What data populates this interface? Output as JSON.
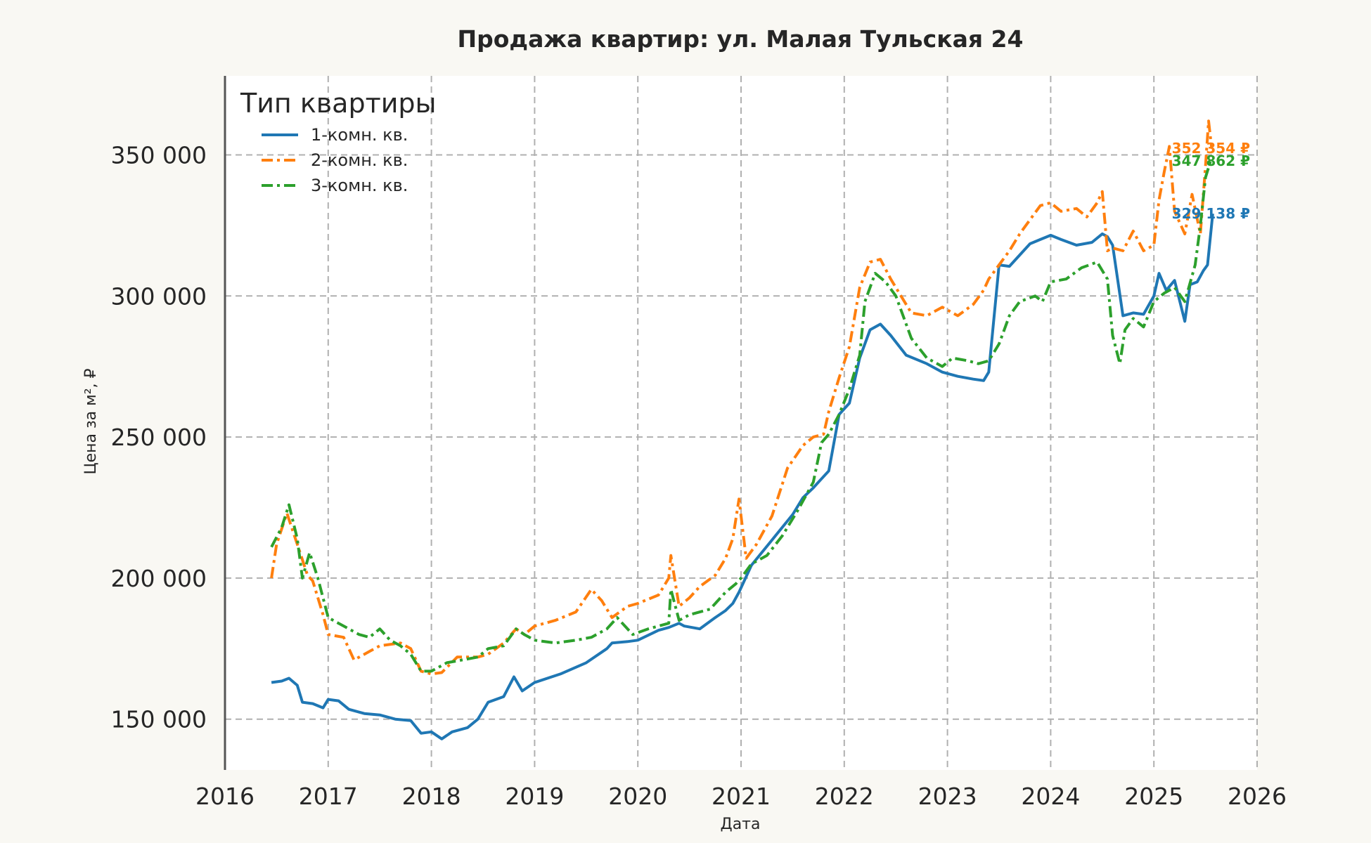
{
  "chart_data": {
    "type": "line",
    "title": "Продажа квартир: ул. Малая Тульская 24",
    "xlabel": "Дата",
    "ylabel": "Цена за м², ₽",
    "xlim": [
      2016,
      2026
    ],
    "ylim": [
      132000,
      378000
    ],
    "x_ticks": [
      "2016",
      "2017",
      "2018",
      "2019",
      "2020",
      "2021",
      "2022",
      "2023",
      "2024",
      "2025",
      "2026"
    ],
    "y_ticks": [
      150000,
      200000,
      250000,
      300000,
      350000
    ],
    "y_tick_labels": [
      "150 000",
      "200 000",
      "250 000",
      "300 000",
      "350 000"
    ],
    "grid": true,
    "legend_title": "Тип квартиры",
    "legend_position": "top-left",
    "series": [
      {
        "name": "1-комн. кв.",
        "color": "#1f77b4",
        "style": "solid",
        "end_label": "329 138 ₽",
        "x": [
          2016.45,
          2016.55,
          2016.62,
          2016.7,
          2016.75,
          2016.85,
          2016.95,
          2017.0,
          2017.1,
          2017.2,
          2017.35,
          2017.5,
          2017.65,
          2017.8,
          2017.9,
          2018.0,
          2018.1,
          2018.2,
          2018.35,
          2018.45,
          2018.55,
          2018.7,
          2018.8,
          2018.88,
          2019.0,
          2019.25,
          2019.5,
          2019.7,
          2019.75,
          2019.9,
          2020.0,
          2020.2,
          2020.3,
          2020.4,
          2020.45,
          2020.6,
          2020.75,
          2020.85,
          2020.92,
          2020.98,
          2021.1,
          2021.3,
          2021.5,
          2021.6,
          2021.7,
          2021.75,
          2021.85,
          2021.95,
          2022.05,
          2022.15,
          2022.25,
          2022.35,
          2022.45,
          2022.6,
          2022.8,
          2022.95,
          2023.1,
          2023.25,
          2023.35,
          2023.4,
          2023.5,
          2023.6,
          2023.7,
          2023.8,
          2023.9,
          2024.0,
          2024.1,
          2024.25,
          2024.4,
          2024.5,
          2024.55,
          2024.6,
          2024.7,
          2024.8,
          2024.9,
          2025.0,
          2025.05,
          2025.12,
          2025.2,
          2025.3,
          2025.35,
          2025.42,
          2025.48,
          2025.52,
          2025.57
        ],
        "y": [
          163000,
          163500,
          164500,
          162000,
          156000,
          155500,
          154000,
          157000,
          156500,
          153500,
          152000,
          151500,
          150000,
          149500,
          145000,
          145500,
          143000,
          145500,
          147000,
          150000,
          156000,
          158000,
          165000,
          160000,
          163000,
          166000,
          170000,
          175000,
          177000,
          177500,
          178000,
          181500,
          182500,
          184000,
          183000,
          182000,
          186000,
          188500,
          191000,
          195000,
          204500,
          213500,
          222500,
          228500,
          232000,
          234000,
          238000,
          258000,
          262000,
          278000,
          288000,
          290000,
          286000,
          279000,
          276000,
          273000,
          271500,
          270500,
          270000,
          273000,
          311000,
          310500,
          314500,
          318500,
          320000,
          321500,
          320000,
          318000,
          319000,
          322000,
          321000,
          318000,
          293000,
          294000,
          293500,
          300000,
          308000,
          302000,
          305500,
          291000,
          304000,
          305000,
          309000,
          311000,
          329138
        ]
      },
      {
        "name": "2-комн. кв.",
        "color": "#ff7f0e",
        "style": "dash-dot",
        "end_label": "352 354 ₽",
        "x": [
          2016.45,
          2016.5,
          2016.6,
          2016.7,
          2016.8,
          2016.85,
          2016.95,
          2017.0,
          2017.15,
          2017.25,
          2017.4,
          2017.5,
          2017.7,
          2017.8,
          2017.9,
          2018.0,
          2018.1,
          2018.25,
          2018.45,
          2018.55,
          2018.7,
          2018.82,
          2018.9,
          2019.0,
          2019.2,
          2019.4,
          2019.55,
          2019.65,
          2019.75,
          2019.9,
          2020.0,
          2020.2,
          2020.3,
          2020.32,
          2020.4,
          2020.5,
          2020.6,
          2020.75,
          2020.85,
          2020.92,
          2020.98,
          2021.05,
          2021.15,
          2021.3,
          2021.45,
          2021.6,
          2021.7,
          2021.8,
          2021.85,
          2021.95,
          2022.05,
          2022.15,
          2022.25,
          2022.35,
          2022.45,
          2022.55,
          2022.65,
          2022.8,
          2022.95,
          2023.1,
          2023.25,
          2023.35,
          2023.4,
          2023.5,
          2023.6,
          2023.7,
          2023.8,
          2023.9,
          2024.0,
          2024.1,
          2024.25,
          2024.35,
          2024.45,
          2024.5,
          2024.55,
          2024.6,
          2024.7,
          2024.8,
          2024.9,
          2025.0,
          2025.05,
          2025.1,
          2025.15,
          2025.2,
          2025.3,
          2025.37,
          2025.45,
          2025.5,
          2025.53,
          2025.56
        ],
        "y": [
          200000,
          212000,
          223000,
          212000,
          201000,
          199000,
          187000,
          180000,
          179000,
          171000,
          174000,
          176000,
          177000,
          175000,
          167000,
          166000,
          166500,
          172000,
          172000,
          173000,
          177000,
          182000,
          180000,
          183000,
          185000,
          188000,
          196000,
          192000,
          186000,
          190000,
          191000,
          194000,
          200000,
          208000,
          190000,
          193000,
          197000,
          201000,
          207000,
          214000,
          228000,
          207000,
          212000,
          222000,
          239000,
          247000,
          250000,
          251000,
          259000,
          271000,
          282000,
          303000,
          312000,
          313000,
          306000,
          300000,
          294000,
          293000,
          296000,
          293000,
          297000,
          302000,
          306000,
          311000,
          316000,
          322000,
          327000,
          332000,
          333000,
          330000,
          331000,
          328000,
          333000,
          337000,
          316000,
          317000,
          316000,
          323000,
          316000,
          318000,
          334000,
          344000,
          353000,
          330000,
          322000,
          336000,
          322000,
          346000,
          362000,
          352354
        ]
      },
      {
        "name": "3-комн. кв.",
        "color": "#2ca02c",
        "style": "dash-dot",
        "end_label": "347 862 ₽",
        "x": [
          2016.45,
          2016.55,
          2016.62,
          2016.7,
          2016.75,
          2016.82,
          2016.9,
          2017.0,
          2017.1,
          2017.2,
          2017.3,
          2017.4,
          2017.5,
          2017.6,
          2017.7,
          2017.8,
          2017.9,
          2018.0,
          2018.15,
          2018.3,
          2018.45,
          2018.55,
          2018.7,
          2018.82,
          2018.9,
          2019.0,
          2019.2,
          2019.4,
          2019.55,
          2019.7,
          2019.8,
          2019.95,
          2020.1,
          2020.3,
          2020.32,
          2020.4,
          2020.5,
          2020.7,
          2020.85,
          2020.95,
          2021.0,
          2021.1,
          2021.25,
          2021.4,
          2021.55,
          2021.7,
          2021.78,
          2021.85,
          2021.95,
          2022.05,
          2022.15,
          2022.2,
          2022.3,
          2022.4,
          2022.5,
          2022.65,
          2022.8,
          2022.95,
          2023.05,
          2023.2,
          2023.3,
          2023.4,
          2023.5,
          2023.6,
          2023.7,
          2023.85,
          2023.92,
          2024.0,
          2024.15,
          2024.3,
          2024.45,
          2024.55,
          2024.6,
          2024.67,
          2024.72,
          2024.8,
          2024.9,
          2025.0,
          2025.1,
          2025.2,
          2025.3,
          2025.4,
          2025.45,
          2025.5,
          2025.55
        ],
        "y": [
          211000,
          218000,
          226000,
          214000,
          200000,
          209000,
          200000,
          186000,
          184000,
          182000,
          180000,
          179000,
          182000,
          178000,
          176000,
          173000,
          167000,
          167000,
          170000,
          171000,
          172000,
          175000,
          176000,
          182000,
          180000,
          178000,
          177000,
          178000,
          179000,
          182000,
          186000,
          180000,
          182000,
          184000,
          196000,
          185000,
          187000,
          189000,
          195000,
          198000,
          200000,
          205000,
          208000,
          215000,
          224000,
          234000,
          248000,
          251000,
          258000,
          267000,
          279000,
          298000,
          308000,
          305000,
          300000,
          285000,
          278000,
          275000,
          278000,
          277000,
          276000,
          277000,
          283000,
          293000,
          298000,
          300000,
          298000,
          305000,
          306000,
          310000,
          312000,
          306000,
          286000,
          276000,
          288000,
          292000,
          289000,
          298000,
          301000,
          303000,
          298000,
          311000,
          325000,
          342000,
          347862
        ]
      }
    ]
  }
}
